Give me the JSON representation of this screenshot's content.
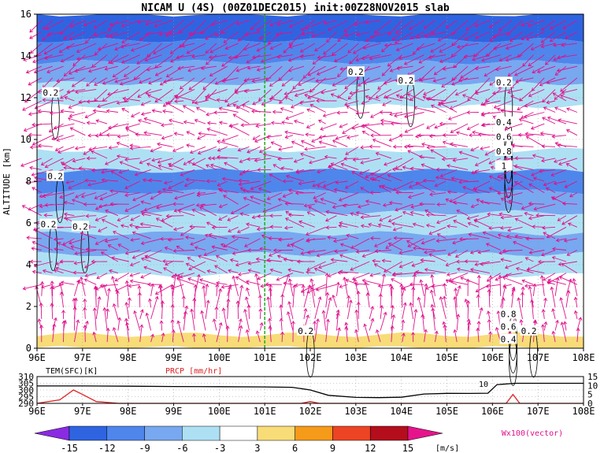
{
  "title": "NICAM U (4S) (00Z01DEC2015) init:00Z28NOV2015 slab",
  "colors": {
    "accent_vector": "#e0108a",
    "green_line": "#22aa22",
    "precip_line": "#dd2222",
    "tem_line": "#000000"
  },
  "chart_data": [
    {
      "type": "heatmap",
      "name": "U cross-section",
      "ylabel": "ALTITUDE [km]",
      "xlim": [
        96,
        108
      ],
      "ylim": [
        0,
        16
      ],
      "x_ticks": [
        "96E",
        "97E",
        "98E",
        "99E",
        "100E",
        "101E",
        "102E",
        "103E",
        "104E",
        "105E",
        "106E",
        "107E",
        "108E"
      ],
      "y_ticks": [
        "0",
        "2",
        "4",
        "6",
        "8",
        "10",
        "12",
        "14",
        "16"
      ],
      "grid": true,
      "vertical_marker_lon": 101.0,
      "u_bands": [
        {
          "z": 15.3,
          "u": -15
        },
        {
          "z": 14.2,
          "u": -12
        },
        {
          "z": 13.2,
          "u": -8
        },
        {
          "z": 12.2,
          "u": -5
        },
        {
          "z": 11.0,
          "u": -1
        },
        {
          "z": 10.0,
          "u": 0
        },
        {
          "z": 9.0,
          "u": -5
        },
        {
          "z": 8.0,
          "u": -10
        },
        {
          "z": 7.0,
          "u": -7
        },
        {
          "z": 6.0,
          "u": -4
        },
        {
          "z": 5.0,
          "u": -7
        },
        {
          "z": 4.0,
          "u": -4
        },
        {
          "z": 3.0,
          "u": -1
        },
        {
          "z": 2.0,
          "u": 0
        },
        {
          "z": 1.0,
          "u": 1
        },
        {
          "z": 0.3,
          "u": 4
        }
      ],
      "contour_labels": [
        {
          "lon": 96.3,
          "z": 12.2,
          "text": "0.2"
        },
        {
          "lon": 96.4,
          "z": 8.2,
          "text": "0.2"
        },
        {
          "lon": 96.25,
          "z": 5.9,
          "text": "0.2"
        },
        {
          "lon": 96.95,
          "z": 5.8,
          "text": "0.2"
        },
        {
          "lon": 101.9,
          "z": 0.8,
          "text": "0.2"
        },
        {
          "lon": 103.0,
          "z": 13.2,
          "text": "0.2"
        },
        {
          "lon": 104.1,
          "z": 12.8,
          "text": "0.2"
        },
        {
          "lon": 106.25,
          "z": 12.7,
          "text": "0.2"
        },
        {
          "lon": 106.25,
          "z": 10.8,
          "text": "0.4"
        },
        {
          "lon": 106.25,
          "z": 10.1,
          "text": "0.6"
        },
        {
          "lon": 106.25,
          "z": 9.4,
          "text": "0.8"
        },
        {
          "lon": 106.25,
          "z": 8.7,
          "text": "1"
        },
        {
          "lon": 106.35,
          "z": 1.6,
          "text": "0.8"
        },
        {
          "lon": 106.35,
          "z": 1.0,
          "text": "0.6"
        },
        {
          "lon": 106.35,
          "z": 0.4,
          "text": "0.4"
        },
        {
          "lon": 106.8,
          "z": 0.8,
          "text": "0.2"
        }
      ],
      "vector_label": "Wx100(vector)"
    },
    {
      "type": "line",
      "name": "surface panel",
      "xlim": [
        96,
        108
      ],
      "x_ticks": [
        "96E",
        "97E",
        "98E",
        "99E",
        "100E",
        "101E",
        "102E",
        "103E",
        "104E",
        "105E",
        "106E",
        "107E",
        "108E"
      ],
      "left_axis_label": "TEM(SFC)[K]",
      "left_ylim": [
        290,
        310
      ],
      "left_ticks": [
        "310",
        "305",
        "300",
        "295",
        "290"
      ],
      "right_axis_label": "PRCP [mm/hr]",
      "right_ylim": [
        0,
        15
      ],
      "right_ticks": [
        "15",
        "10",
        "5",
        "0"
      ],
      "tem_series": {
        "x": [
          96.0,
          97.0,
          98.0,
          99.0,
          100.0,
          101.0,
          101.6,
          102.0,
          102.4,
          103.0,
          103.5,
          104.0,
          104.5,
          105.0,
          105.5,
          105.9,
          106.1,
          106.5,
          107.0,
          108.0
        ],
        "y": [
          303.0,
          303.0,
          302.8,
          302.6,
          302.5,
          302.3,
          302.0,
          300.0,
          296.0,
          294.5,
          294.3,
          294.6,
          297.0,
          297.5,
          297.4,
          297.6,
          304.0,
          305.0,
          305.0,
          305.0
        ]
      },
      "prcp_series": {
        "x": [
          96.0,
          96.5,
          96.8,
          97.0,
          97.3,
          97.8,
          98.5,
          101.0,
          101.8,
          102.0,
          102.2,
          103.0,
          106.0,
          106.3,
          106.45,
          106.6,
          106.8,
          108.0
        ],
        "y": [
          0.0,
          2.0,
          7.5,
          5.0,
          1.0,
          0.0,
          0.0,
          0.0,
          0.0,
          1.0,
          0.0,
          0.0,
          0.0,
          0.0,
          5.0,
          0.0,
          0.0,
          0.0
        ]
      },
      "annotation": "10"
    },
    {
      "type": "table",
      "name": "colorbar",
      "tick_labels": [
        "-15",
        "-12",
        "-9",
        "-6",
        "-3",
        "3",
        "6",
        "9",
        "12",
        "15"
      ],
      "unit": "[m/s]",
      "bins": [
        {
          "color": "#8a2be2"
        },
        {
          "color": "#2f64e1"
        },
        {
          "color": "#4f86ec"
        },
        {
          "color": "#78a8f0"
        },
        {
          "color": "#aee0f4"
        },
        {
          "color": "#ffffff"
        },
        {
          "color": "#f8dc78"
        },
        {
          "color": "#f69a1a"
        },
        {
          "color": "#ec4424"
        },
        {
          "color": "#b40e1c"
        },
        {
          "color": "#e6148c"
        }
      ]
    }
  ]
}
